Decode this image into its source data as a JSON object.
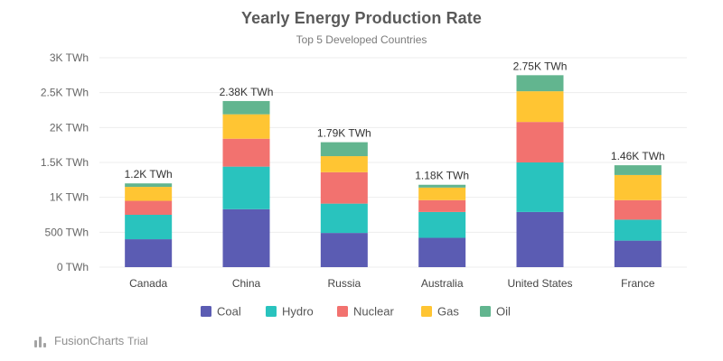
{
  "chart_data": {
    "type": "bar",
    "stacked": true,
    "title": "Yearly Energy Production Rate",
    "subtitle": "Top 5 Developed Countries",
    "categories": [
      "Canada",
      "China",
      "Russia",
      "Australia",
      "United States",
      "France"
    ],
    "series": [
      {
        "name": "Coal",
        "color": "#5b5cb3",
        "values": [
          400,
          830,
          490,
          420,
          790,
          380
        ]
      },
      {
        "name": "Hydro",
        "color": "#29c3be",
        "values": [
          350,
          610,
          420,
          370,
          710,
          300
        ]
      },
      {
        "name": "Nuclear",
        "color": "#f2726f",
        "values": [
          200,
          400,
          450,
          170,
          580,
          280
        ]
      },
      {
        "name": "Gas",
        "color": "#ffc533",
        "values": [
          200,
          350,
          230,
          180,
          440,
          360
        ]
      },
      {
        "name": "Oil",
        "color": "#62b58f",
        "values": [
          50,
          190,
          200,
          40,
          230,
          140
        ]
      }
    ],
    "totals": [
      "1.2K TWh",
      "2.38K TWh",
      "1.79K TWh",
      "1.18K TWh",
      "2.75K TWh",
      "1.46K TWh"
    ],
    "ylim": [
      0,
      3000
    ],
    "yticks": [
      {
        "value": 0,
        "label": "0 TWh"
      },
      {
        "value": 500,
        "label": "500 TWh"
      },
      {
        "value": 1000,
        "label": "1K TWh"
      },
      {
        "value": 1500,
        "label": "1.5K TWh"
      },
      {
        "value": 2000,
        "label": "2K TWh"
      },
      {
        "value": 2500,
        "label": "2.5K TWh"
      },
      {
        "value": 3000,
        "label": "3K TWh"
      }
    ],
    "legend_position": "bottom",
    "grid": true
  },
  "branding": {
    "name": "FusionCharts",
    "suffix": "Trial"
  }
}
